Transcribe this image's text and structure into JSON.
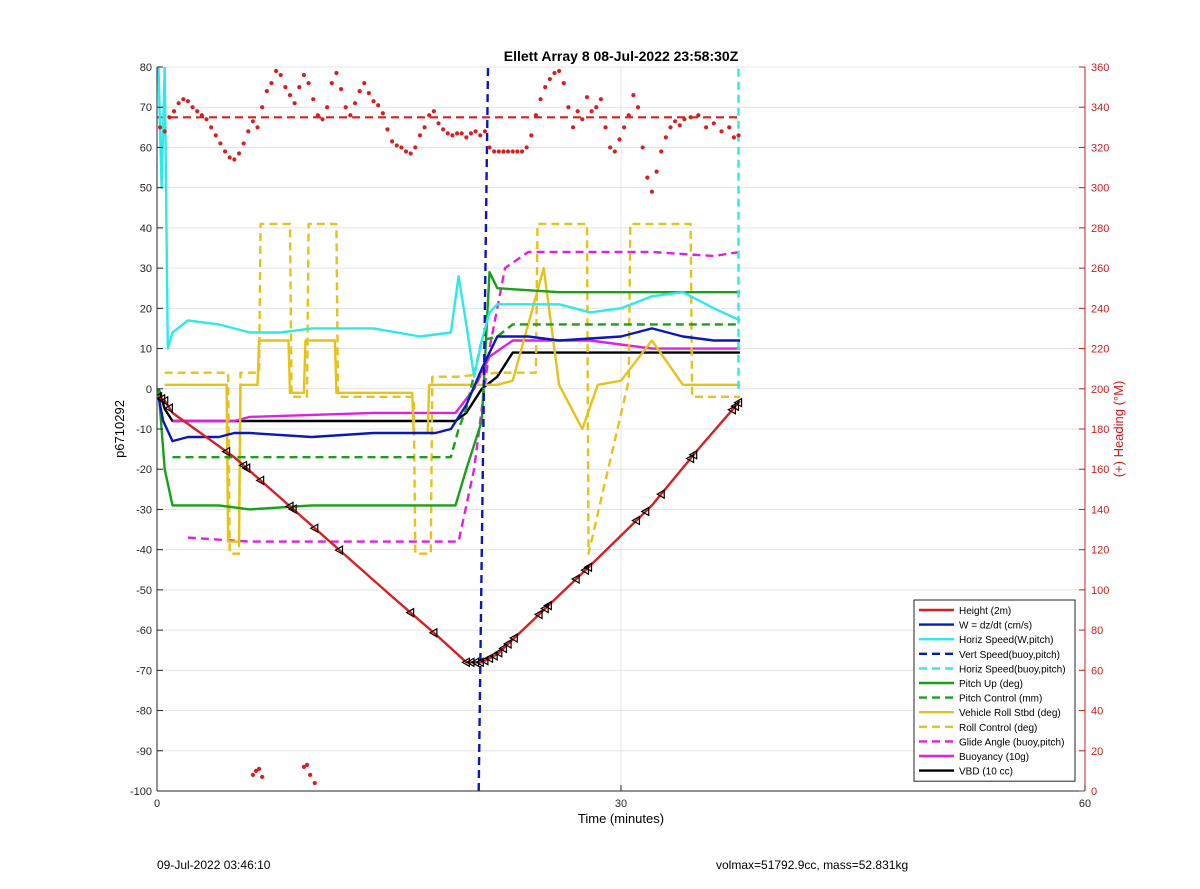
{
  "footer": {
    "left": "09-Jul-2022 03:46:10",
    "right": "volmax=51792.9cc, mass=52.831kg"
  },
  "chart_data": {
    "type": "line",
    "title": "Ellett Array 8 08-Jul-2022 23:58:30Z",
    "xlabel": "Time (minutes)",
    "ylabel": "p6710292",
    "y2label": "(+) Heading (°M)",
    "xlim": [
      0,
      60
    ],
    "ylim": [
      -100,
      80
    ],
    "y2lim": [
      0,
      360
    ],
    "xticks": [
      0,
      30,
      60
    ],
    "yticks": [
      -100,
      -90,
      -80,
      -70,
      -60,
      -50,
      -40,
      -30,
      -20,
      -10,
      0,
      10,
      20,
      30,
      40,
      50,
      60,
      70,
      80
    ],
    "y2ticks": [
      0,
      20,
      40,
      60,
      80,
      100,
      120,
      140,
      160,
      180,
      200,
      220,
      240,
      260,
      280,
      300,
      320,
      340,
      360
    ],
    "grid": true,
    "legend_position": "bottom-right",
    "colors": {
      "red": "#d62020",
      "blue": "#0a18b8",
      "cyan": "#2fe8e8",
      "green": "#18a018",
      "gold": "#e6c21a",
      "magenta": "#e020e0",
      "black": "#000000",
      "heading_axis": "#c81e1e"
    },
    "series": [
      {
        "name": "Height (2m)",
        "color": "#d62020",
        "style": "solid",
        "x": [
          0.1,
          0.5,
          1,
          5,
          10,
          15,
          18,
          20,
          21,
          22,
          25,
          28,
          32,
          35,
          37.7
        ],
        "y": [
          -2,
          -3,
          -6,
          -17,
          -34,
          -51,
          -61,
          -68,
          -68,
          -66,
          -55,
          -44,
          -29,
          -15,
          -3
        ]
      },
      {
        "name": "W = dz/dt (cm/s)",
        "color": "#0a18b8",
        "style": "solid",
        "x": [
          0.1,
          0.4,
          1,
          2,
          4,
          5,
          6,
          10,
          14,
          16,
          18,
          19,
          20,
          21,
          22,
          24,
          26,
          30,
          32,
          34,
          36,
          37.7
        ],
        "y": [
          -2,
          -8,
          -13,
          -12,
          -12,
          -11,
          -11,
          -12,
          -11,
          -11,
          -11,
          -10,
          -4,
          5,
          13,
          13,
          12,
          13,
          15,
          13,
          12,
          12
        ]
      },
      {
        "name": "Horiz Speed(W,pitch)",
        "color": "#2fe8e8",
        "style": "solid",
        "x": [
          0.1,
          0.3,
          0.5,
          0.7,
          1,
          2,
          4,
          6,
          8,
          10,
          14,
          17,
          19,
          19.5,
          20,
          20.5,
          21,
          21.5,
          22,
          24,
          26,
          28,
          30,
          32,
          34,
          36,
          37.7
        ],
        "y": [
          80,
          50,
          80,
          10,
          14,
          17,
          16,
          14,
          14,
          15,
          15,
          13,
          14,
          28,
          16,
          3,
          12,
          19,
          21,
          21,
          21,
          19,
          20,
          23,
          24,
          20,
          17
        ]
      },
      {
        "name": "Vert Speed(buoy,pitch)",
        "color": "#0a18b8",
        "style": "dashed",
        "x": [
          20.8,
          21.4
        ],
        "y": [
          -100,
          80
        ]
      },
      {
        "name": "Horiz Speed(buoy,pitch)",
        "color": "#2fe8e8",
        "style": "dashed",
        "x": [
          37.6,
          37.6
        ],
        "y": [
          0,
          80
        ]
      },
      {
        "name": "Pitch Up (deg)",
        "color": "#18a018",
        "style": "solid",
        "x": [
          0.1,
          0.5,
          1,
          2,
          4,
          6,
          10,
          14,
          17,
          19.3,
          20,
          21,
          21.5,
          22,
          26,
          30,
          34,
          37.7
        ],
        "y": [
          0,
          -20,
          -29,
          -29,
          -29,
          -30,
          -29,
          -29,
          -29,
          -29,
          -20,
          -8,
          29,
          25,
          24,
          24,
          24,
          24
        ]
      },
      {
        "name": "Pitch Control (mm)",
        "color": "#18a018",
        "style": "dashed",
        "x": [
          1,
          19,
          19.5,
          20,
          21,
          22,
          23,
          37.7
        ],
        "y": [
          -17,
          -17,
          -10,
          -5,
          12,
          13,
          16,
          16
        ]
      },
      {
        "name": "Vehicle Roll Stbd (deg)",
        "color": "#e6c21a",
        "style": "solid",
        "x": [
          0.5,
          4.5,
          4.6,
          5.3,
          5.4,
          6.5,
          6.6,
          8.5,
          8.6,
          9.5,
          9.6,
          11.5,
          11.6,
          16.5,
          16.6,
          17.5,
          17.6,
          19.4,
          22,
          23,
          25,
          26,
          27.5,
          28.5,
          30,
          32,
          34,
          35,
          37.7
        ],
        "y": [
          1,
          1,
          -38,
          -38,
          1,
          1,
          12,
          12,
          -1,
          -1,
          12,
          12,
          -1,
          -1,
          -11,
          -11,
          1,
          1,
          1,
          2,
          30,
          1,
          -10,
          1,
          2,
          12,
          1,
          1,
          1
        ]
      },
      {
        "name": "Roll Control (deg)",
        "color": "#e6c21a",
        "style": "dashed",
        "x": [
          0.5,
          4.6,
          4.7,
          5.3,
          5.4,
          6.6,
          6.7,
          8.6,
          8.7,
          9.7,
          9.8,
          11.6,
          11.7,
          16.6,
          16.7,
          17.7,
          17.8,
          19.4,
          22,
          24.5,
          24.6,
          27.8,
          27.9,
          30.5,
          30.6,
          34.5,
          34.6,
          37.7
        ],
        "y": [
          4,
          4,
          -41,
          -41,
          4,
          4,
          41,
          41,
          -2,
          -2,
          41,
          41,
          -2,
          -2,
          -41,
          -41,
          3,
          3,
          4,
          4,
          41,
          41,
          -41,
          2,
          41,
          41,
          -2,
          -2
        ]
      },
      {
        "name": "Glide Angle (buoy,pitch)",
        "color": "#e020e0",
        "style": "dashed",
        "x": [
          2,
          6,
          10,
          14,
          18,
          19.5,
          20.5,
          21.5,
          22.5,
          24,
          28,
          32,
          36,
          37.7
        ],
        "y": [
          -37,
          -38,
          -38,
          -38,
          -38,
          -38,
          -20,
          10,
          30,
          34,
          34,
          34,
          33,
          34
        ]
      },
      {
        "name": "Buoyancy (10g)",
        "color": "#e020e0",
        "style": "solid",
        "x": [
          1,
          5,
          6,
          10,
          14,
          19.3,
          20.5,
          21.5,
          23,
          28,
          32,
          37.7
        ],
        "y": [
          -8,
          -8,
          -7,
          -6.5,
          -6,
          -6,
          0,
          8,
          12,
          12,
          10,
          10
        ]
      },
      {
        "name": "VBD (10 cc)",
        "color": "#000000",
        "style": "solid",
        "x": [
          0.1,
          0.5,
          1,
          5,
          10,
          15,
          19.3,
          20,
          21,
          22,
          23,
          30,
          37.7
        ],
        "y": [
          0,
          -5,
          -8,
          -8,
          -8,
          -8,
          -8,
          -6,
          0,
          3,
          9,
          9,
          9
        ]
      }
    ],
    "reference_lines": [
      {
        "name": "mean heading",
        "color": "#d62020",
        "style": "dashed",
        "axis": "y2",
        "x": [
          0,
          37.7
        ],
        "y": [
          335,
          335
        ]
      }
    ],
    "heading_points": {
      "name": "Heading",
      "color": "#d62020",
      "axis": "y2",
      "x": [
        0.2,
        0.5,
        0.8,
        1.1,
        1.4,
        1.7,
        2.0,
        2.3,
        2.6,
        2.9,
        3.2,
        3.5,
        3.8,
        4.1,
        4.4,
        4.7,
        5.0,
        5.3,
        5.6,
        5.9,
        6.2,
        6.5,
        6.8,
        7.1,
        7.4,
        7.7,
        8.0,
        8.3,
        8.6,
        8.9,
        9.2,
        9.5,
        9.8,
        10.1,
        10.4,
        10.7,
        11.0,
        11.3,
        11.6,
        11.9,
        12.2,
        12.5,
        12.8,
        13.1,
        13.4,
        13.7,
        14.0,
        14.3,
        14.6,
        14.9,
        15.2,
        15.5,
        15.8,
        16.1,
        16.4,
        16.7,
        17.0,
        17.3,
        17.6,
        17.9,
        18.2,
        18.5,
        18.8,
        19.1,
        19.4,
        19.7,
        20.0,
        20.3,
        20.6,
        20.9,
        21.2,
        21.5,
        21.8,
        22.1,
        22.4,
        22.7,
        23.0,
        23.3,
        23.6,
        23.9,
        24.2,
        24.5,
        24.8,
        25.1,
        25.4,
        25.7,
        26.0,
        26.3,
        26.6,
        26.9,
        27.2,
        27.5,
        27.8,
        28.1,
        28.4,
        28.7,
        29.0,
        29.3,
        29.6,
        29.9,
        30.2,
        30.5,
        30.8,
        31.1,
        31.4,
        31.7,
        32.0,
        32.3,
        32.6,
        32.9,
        33.2,
        33.5,
        33.8,
        34.1,
        34.5,
        35.0,
        35.5,
        36.0,
        36.5,
        37.0,
        37.3,
        37.6,
        6.2,
        6.4,
        6.6,
        6.8,
        9.5,
        9.7,
        9.9,
        10.2
      ],
      "y": [
        330,
        328,
        335,
        338,
        342,
        344,
        343,
        340,
        338,
        336,
        334,
        330,
        326,
        322,
        318,
        315,
        314,
        317,
        322,
        328,
        333,
        330,
        340,
        348,
        352,
        358,
        356,
        350,
        346,
        342,
        350,
        356,
        352,
        344,
        336,
        334,
        340,
        352,
        357,
        349,
        340,
        336,
        342,
        348,
        352,
        347,
        343,
        341,
        337,
        329,
        323,
        321,
        320,
        318,
        317,
        320,
        326,
        330,
        336,
        338,
        332,
        329,
        327,
        326,
        327,
        327,
        325,
        327,
        328,
        326,
        328,
        320,
        318,
        318,
        318,
        318,
        318,
        318,
        318,
        320,
        326,
        336,
        344,
        350,
        354,
        357,
        358,
        352,
        340,
        330,
        338,
        334,
        345,
        338,
        340,
        344,
        330,
        320,
        318,
        324,
        330,
        336,
        346,
        340,
        320,
        305,
        298,
        308,
        318,
        325,
        330,
        333,
        331,
        334,
        335,
        336,
        330,
        332,
        328,
        330,
        325,
        326,
        8,
        10,
        11,
        7,
        12,
        13,
        8,
        4
      ]
    },
    "markers": {
      "symbol": "triangle-left",
      "color": "#000000",
      "on_series": "Height (2m)",
      "x": [
        0.1,
        0.3,
        0.5,
        0.8,
        4.5,
        5.6,
        5.8,
        6.7,
        8.6,
        8.8,
        10.2,
        11.8,
        16.4,
        17.9,
        20.0,
        20.3,
        20.6,
        20.9,
        21.2,
        21.5,
        21.8,
        22.1,
        22.4,
        22.7,
        23.1,
        24.7,
        25.1,
        25.3,
        27.1,
        27.7,
        27.9,
        31.0,
        31.6,
        32.6,
        34.5,
        34.7,
        37.2,
        37.4,
        37.6
      ]
    }
  }
}
